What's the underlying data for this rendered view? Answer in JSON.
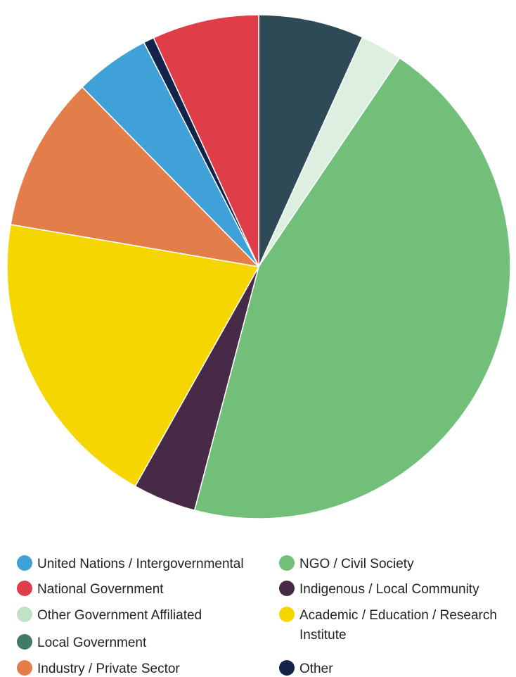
{
  "chart_data": {
    "type": "pie",
    "title": "",
    "legend_position": "bottom",
    "slices": [
      {
        "label": "Local Government",
        "value": 7.0,
        "color": "#2d4a56"
      },
      {
        "label": "Other Government Affiliated",
        "value": 2.8,
        "color": "#dcefe0"
      },
      {
        "label": "NGO / Civil Society",
        "value": 46.2,
        "color": "#72bf7a"
      },
      {
        "label": "Indigenous / Local Community",
        "value": 4.2,
        "color": "#472a47"
      },
      {
        "label": "Academic / Education / Research Institute",
        "value": 20.2,
        "color": "#f5d600"
      },
      {
        "label": "Industry / Private Sector",
        "value": 10.3,
        "color": "#e37e4a"
      },
      {
        "label": "United Nations / Intergovernmental",
        "value": 5.0,
        "color": "#3fa1d8"
      },
      {
        "label": "Other",
        "value": 0.7,
        "color": "#14234a"
      },
      {
        "label": "National Government",
        "value": 7.1,
        "color": "#df3e48"
      }
    ],
    "legend": [
      {
        "label": "United Nations / Intergovernmental",
        "color": "#3fa1d8",
        "column": 0,
        "row": 0
      },
      {
        "label": "National Government",
        "color": "#df3e48",
        "column": 0,
        "row": 1
      },
      {
        "label": "Other Government Affiliated",
        "color": "#bfe3c6",
        "column": 0,
        "row": 2
      },
      {
        "label": "Local Government",
        "color": "#417a66",
        "column": 0,
        "row": 3
      },
      {
        "label": "Industry / Private Sector",
        "color": "#e37e4a",
        "column": 0,
        "row": 4
      },
      {
        "label": "NGO / Civil Society",
        "color": "#72bf7a",
        "column": 1,
        "row": 0
      },
      {
        "label": "Indigenous / Local Community",
        "color": "#472a47",
        "column": 1,
        "row": 1
      },
      {
        "label": "Academic / Education / Research",
        "label_line2": "Institute",
        "color": "#f5d600",
        "column": 1,
        "row": 2
      },
      {
        "label": "Other",
        "color": "#14234a",
        "column": 1,
        "row": 4
      }
    ]
  }
}
